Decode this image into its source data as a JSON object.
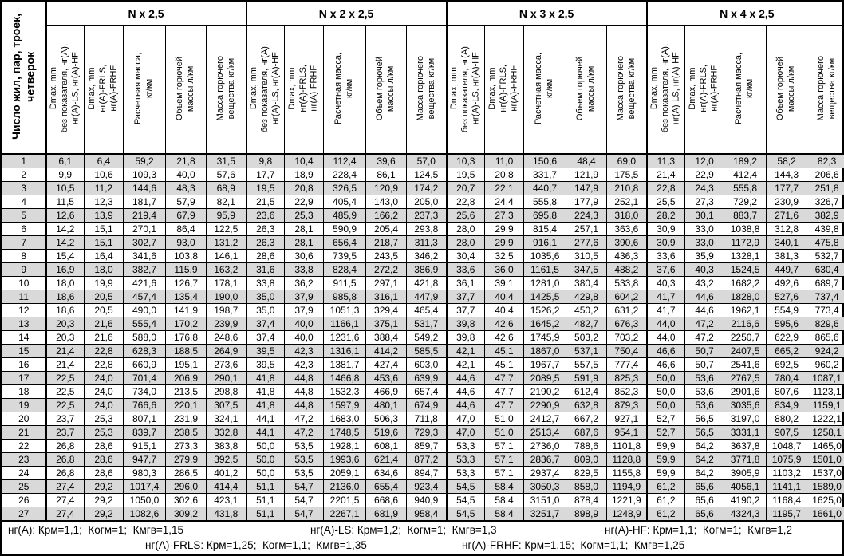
{
  "colors": {
    "stripe": "#d9d9d9",
    "border": "#000000"
  },
  "corner_header": "Число жил, пар, троек,\nчетверок",
  "groups": [
    "N x 2,5",
    "N x 2 x 2,5",
    "N x 3 x 2,5",
    "N x 4 x 2,5"
  ],
  "sub_headers": [
    [
      "Dmax, mm",
      "без показателя, нг(А),",
      "нг(А)-LS, нг(А)-HF"
    ],
    [
      "Dmax, mm",
      "нг(А)-FRLS,",
      "нг(А)-FRHF"
    ],
    [
      "Расчетная масса,",
      "кг/км"
    ],
    [
      "Объем горючей",
      "массы л/км"
    ],
    [
      "Масса горючего",
      "вещества кг/км"
    ]
  ],
  "rows": [
    {
      "n": "1",
      "cells": [
        "6,1",
        "6,4",
        "59,2",
        "21,8",
        "31,5",
        "9,8",
        "10,4",
        "112,4",
        "39,6",
        "57,0",
        "10,3",
        "11,0",
        "150,6",
        "48,4",
        "69,0",
        "11,3",
        "12,0",
        "189,2",
        "58,2",
        "82,3"
      ]
    },
    {
      "n": "2",
      "cells": [
        "9,9",
        "10,6",
        "109,3",
        "40,0",
        "57,6",
        "17,7",
        "18,9",
        "228,4",
        "86,1",
        "124,5",
        "19,5",
        "20,8",
        "331,7",
        "121,9",
        "175,5",
        "21,4",
        "22,9",
        "412,4",
        "144,3",
        "206,6"
      ]
    },
    {
      "n": "3",
      "cells": [
        "10,5",
        "11,2",
        "144,6",
        "48,3",
        "68,9",
        "19,5",
        "20,8",
        "326,5",
        "120,9",
        "174,2",
        "20,7",
        "22,1",
        "440,7",
        "147,9",
        "210,8",
        "22,8",
        "24,3",
        "555,8",
        "177,7",
        "251,8"
      ]
    },
    {
      "n": "4",
      "cells": [
        "11,5",
        "12,3",
        "181,7",
        "57,9",
        "82,1",
        "21,5",
        "22,9",
        "405,4",
        "143,0",
        "205,0",
        "22,8",
        "24,4",
        "555,8",
        "177,9",
        "252,1",
        "25,5",
        "27,3",
        "729,2",
        "230,9",
        "326,7"
      ]
    },
    {
      "n": "5",
      "cells": [
        "12,6",
        "13,9",
        "219,4",
        "67,9",
        "95,9",
        "23,6",
        "25,3",
        "485,9",
        "166,2",
        "237,3",
        "25,6",
        "27,3",
        "695,8",
        "224,3",
        "318,0",
        "28,2",
        "30,1",
        "883,7",
        "271,6",
        "382,9"
      ]
    },
    {
      "n": "6",
      "cells": [
        "14,2",
        "15,1",
        "270,1",
        "86,4",
        "122,5",
        "26,3",
        "28,1",
        "590,9",
        "205,4",
        "293,8",
        "28,0",
        "29,9",
        "815,4",
        "257,1",
        "363,6",
        "30,9",
        "33,0",
        "1038,8",
        "312,8",
        "439,8"
      ]
    },
    {
      "n": "7",
      "cells": [
        "14,2",
        "15,1",
        "302,7",
        "93,0",
        "131,2",
        "26,3",
        "28,1",
        "656,4",
        "218,7",
        "311,3",
        "28,0",
        "29,9",
        "916,1",
        "277,6",
        "390,6",
        "30,9",
        "33,0",
        "1172,9",
        "340,1",
        "475,8"
      ]
    },
    {
      "n": "8",
      "cells": [
        "15,4",
        "16,4",
        "341,6",
        "103,8",
        "146,1",
        "28,6",
        "30,6",
        "739,5",
        "243,5",
        "346,2",
        "30,4",
        "32,5",
        "1035,6",
        "310,5",
        "436,3",
        "33,6",
        "35,9",
        "1328,1",
        "381,3",
        "532,7"
      ]
    },
    {
      "n": "9",
      "cells": [
        "16,9",
        "18,0",
        "382,7",
        "115,9",
        "163,2",
        "31,6",
        "33,8",
        "828,4",
        "272,2",
        "386,9",
        "33,6",
        "36,0",
        "1161,5",
        "347,5",
        "488,2",
        "37,6",
        "40,3",
        "1524,5",
        "449,7",
        "630,4"
      ]
    },
    {
      "n": "10",
      "cells": [
        "18,0",
        "19,9",
        "421,6",
        "126,7",
        "178,1",
        "33,8",
        "36,2",
        "911,5",
        "297,1",
        "421,8",
        "36,1",
        "39,1",
        "1281,0",
        "380,4",
        "533,8",
        "40,3",
        "43,2",
        "1682,2",
        "492,6",
        "689,7"
      ]
    },
    {
      "n": "11",
      "cells": [
        "18,6",
        "20,5",
        "457,4",
        "135,4",
        "190,0",
        "35,0",
        "37,9",
        "985,8",
        "316,1",
        "447,9",
        "37,7",
        "40,4",
        "1425,5",
        "429,8",
        "604,2",
        "41,7",
        "44,6",
        "1828,0",
        "527,6",
        "737,4"
      ]
    },
    {
      "n": "12",
      "cells": [
        "18,6",
        "20,5",
        "490,0",
        "141,9",
        "198,7",
        "35,0",
        "37,9",
        "1051,3",
        "329,4",
        "465,4",
        "37,7",
        "40,4",
        "1526,2",
        "450,2",
        "631,2",
        "41,7",
        "44,6",
        "1962,1",
        "554,9",
        "773,4"
      ]
    },
    {
      "n": "13",
      "cells": [
        "20,3",
        "21,6",
        "555,4",
        "170,2",
        "239,9",
        "37,4",
        "40,0",
        "1166,1",
        "375,1",
        "531,7",
        "39,8",
        "42,6",
        "1645,2",
        "482,7",
        "676,3",
        "44,0",
        "47,2",
        "2116,6",
        "595,6",
        "829,6"
      ]
    },
    {
      "n": "14",
      "cells": [
        "20,3",
        "21,6",
        "588,0",
        "176,8",
        "248,6",
        "37,4",
        "40,0",
        "1231,6",
        "388,4",
        "549,2",
        "39,8",
        "42,6",
        "1745,9",
        "503,2",
        "703,2",
        "44,0",
        "47,2",
        "2250,7",
        "622,9",
        "865,6"
      ]
    },
    {
      "n": "15",
      "cells": [
        "21,4",
        "22,8",
        "628,3",
        "188,5",
        "264,9",
        "39,5",
        "42,3",
        "1316,1",
        "414,2",
        "585,5",
        "42,1",
        "45,1",
        "1867,0",
        "537,1",
        "750,4",
        "46,6",
        "50,7",
        "2407,5",
        "665,2",
        "924,2"
      ]
    },
    {
      "n": "16",
      "cells": [
        "21,4",
        "22,8",
        "660,9",
        "195,1",
        "273,6",
        "39,5",
        "42,3",
        "1381,7",
        "427,4",
        "603,0",
        "42,1",
        "45,1",
        "1967,7",
        "557,5",
        "777,4",
        "46,6",
        "50,7",
        "2541,6",
        "692,5",
        "960,2"
      ]
    },
    {
      "n": "17",
      "cells": [
        "22,5",
        "24,0",
        "701,4",
        "206,9",
        "290,1",
        "41,8",
        "44,8",
        "1466,8",
        "453,6",
        "639,9",
        "44,6",
        "47,7",
        "2089,5",
        "591,9",
        "825,3",
        "50,0",
        "53,6",
        "2767,5",
        "780,4",
        "1087,1"
      ]
    },
    {
      "n": "18",
      "cells": [
        "22,5",
        "24,0",
        "734,0",
        "213,5",
        "298,8",
        "41,8",
        "44,8",
        "1532,3",
        "466,9",
        "657,4",
        "44,6",
        "47,7",
        "2190,2",
        "612,4",
        "852,3",
        "50,0",
        "53,6",
        "2901,6",
        "807,6",
        "1123,1"
      ]
    },
    {
      "n": "19",
      "cells": [
        "22,5",
        "24,0",
        "766,6",
        "220,1",
        "307,5",
        "41,8",
        "44,8",
        "1597,9",
        "480,1",
        "674,9",
        "44,6",
        "47,7",
        "2290,9",
        "632,8",
        "879,3",
        "50,0",
        "53,6",
        "3035,6",
        "834,9",
        "1159,1"
      ]
    },
    {
      "n": "20",
      "cells": [
        "23,7",
        "25,3",
        "807,1",
        "231,9",
        "324,1",
        "44,1",
        "47,2",
        "1683,0",
        "506,3",
        "711,8",
        "47,0",
        "51,0",
        "2412,7",
        "667,2",
        "927,1",
        "52,7",
        "56,5",
        "3197,0",
        "880,2",
        "1222,1"
      ]
    },
    {
      "n": "21",
      "cells": [
        "23,7",
        "25,3",
        "839,7",
        "238,5",
        "332,8",
        "44,1",
        "47,2",
        "1748,5",
        "519,6",
        "729,3",
        "47,0",
        "51,0",
        "2513,4",
        "687,6",
        "954,1",
        "52,7",
        "56,5",
        "3331,1",
        "907,5",
        "1258,1"
      ]
    },
    {
      "n": "22",
      "cells": [
        "26,8",
        "28,6",
        "915,1",
        "273,3",
        "383,8",
        "50,0",
        "53,5",
        "1928,1",
        "608,1",
        "859,7",
        "53,3",
        "57,1",
        "2736,0",
        "788,6",
        "1101,8",
        "59,9",
        "64,2",
        "3637,8",
        "1048,7",
        "1465,0"
      ]
    },
    {
      "n": "23",
      "cells": [
        "26,8",
        "28,6",
        "947,7",
        "279,9",
        "392,5",
        "50,0",
        "53,5",
        "1993,6",
        "621,4",
        "877,2",
        "53,3",
        "57,1",
        "2836,7",
        "809,0",
        "1128,8",
        "59,9",
        "64,2",
        "3771,8",
        "1075,9",
        "1501,0"
      ]
    },
    {
      "n": "24",
      "cells": [
        "26,8",
        "28,6",
        "980,3",
        "286,5",
        "401,2",
        "50,0",
        "53,5",
        "2059,1",
        "634,6",
        "894,7",
        "53,3",
        "57,1",
        "2937,4",
        "829,5",
        "1155,8",
        "59,9",
        "64,2",
        "3905,9",
        "1103,2",
        "1537,0"
      ]
    },
    {
      "n": "25",
      "cells": [
        "27,4",
        "29,2",
        "1017,4",
        "296,0",
        "414,4",
        "51,1",
        "54,7",
        "2136,0",
        "655,4",
        "923,4",
        "54,5",
        "58,4",
        "3050,3",
        "858,0",
        "1194,9",
        "61,2",
        "65,6",
        "4056,1",
        "1141,1",
        "1589,0"
      ]
    },
    {
      "n": "26",
      "cells": [
        "27,4",
        "29,2",
        "1050,0",
        "302,6",
        "423,1",
        "51,1",
        "54,7",
        "2201,5",
        "668,6",
        "940,9",
        "54,5",
        "58,4",
        "3151,0",
        "878,4",
        "1221,9",
        "61,2",
        "65,6",
        "4190,2",
        "1168,4",
        "1625,0"
      ]
    },
    {
      "n": "27",
      "cells": [
        "27,4",
        "29,2",
        "1082,6",
        "309,2",
        "431,8",
        "51,1",
        "54,7",
        "2267,1",
        "681,9",
        "958,4",
        "54,5",
        "58,4",
        "3251,7",
        "898,9",
        "1248,9",
        "61,2",
        "65,6",
        "4324,3",
        "1195,7",
        "1661,0"
      ]
    }
  ],
  "footnotes": {
    "line1": [
      "нг(А): Крм=1,1;  Когм=1;  Кмгв=1,15",
      "нг(А)-LS: Крм=1,2;  Когм=1;  Кмгв=1,3",
      "нг(А)-HF: Крм=1,1;  Когм=1;  Кмгв=1,2"
    ],
    "line2": [
      "нг(А)-FRLS: Крм=1,25;  Когм=1,1;  Кмгв=1,35",
      "нг(А)-FRHF: Крм=1,15;  Когм=1,1;  Кмгв=1,25"
    ]
  }
}
